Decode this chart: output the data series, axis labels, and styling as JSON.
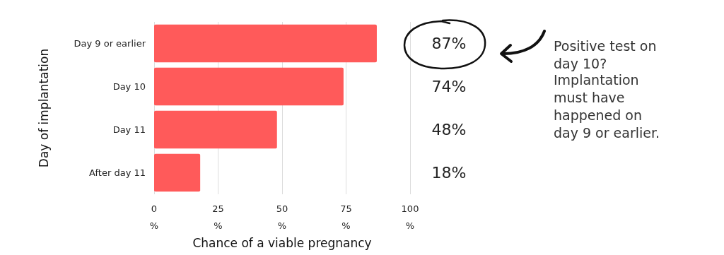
{
  "chart_data": {
    "type": "bar",
    "orientation": "horizontal",
    "ylabel": "Day of implantation",
    "xlabel": "Chance of a viable pregnancy",
    "categories": [
      "Day 9 or earlier",
      "Day 10",
      "Day 11",
      "After day 11"
    ],
    "values": [
      87,
      74,
      48,
      18
    ],
    "color": "#ff5a5a",
    "value_labels": [
      "87%",
      "74%",
      "48%",
      "18%"
    ],
    "xlim": [
      0,
      100
    ],
    "xticks": [
      {
        "value": 0,
        "label": "0\n%"
      },
      {
        "value": 25,
        "label": "25\n%"
      },
      {
        "value": 50,
        "label": "50\n%"
      },
      {
        "value": 75,
        "label": "75\n%"
      },
      {
        "value": 100,
        "label": "100\n%"
      }
    ],
    "grid": "x",
    "annotations": [
      "Positive test on day 10?",
      "Implantation must have happened on day 9 or earlier."
    ]
  }
}
